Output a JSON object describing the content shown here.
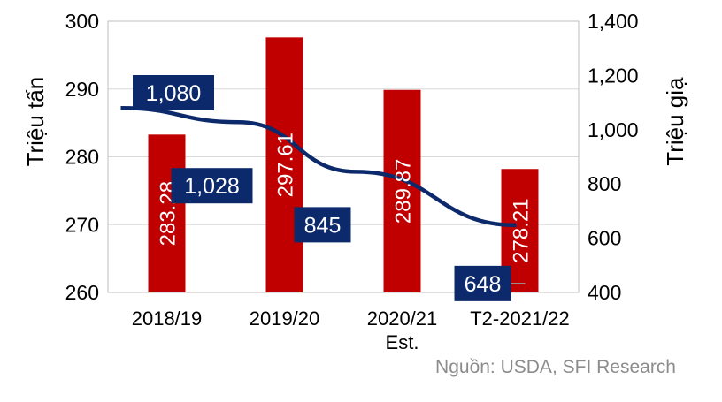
{
  "chart_data": {
    "type": "bar+line",
    "categories": [
      "2018/19",
      "2019/20",
      "2020/21\nEst.",
      "T2-2021/22"
    ],
    "left_axis": {
      "label": "Triệu tấn",
      "range": [
        260,
        300
      ],
      "ticks": [
        "260",
        "270",
        "280",
        "290",
        "300"
      ]
    },
    "right_axis": {
      "label": "Triệu giạ",
      "range": [
        400,
        1400
      ],
      "ticks": [
        "400",
        "600",
        "800",
        "1,000",
        "1,200",
        "1,400"
      ]
    },
    "series": [
      {
        "kind": "bar",
        "axis": "left",
        "color": "#c00000",
        "values": [
          283.28,
          297.61,
          289.87,
          278.21
        ],
        "labels": [
          "283.28",
          "297.61",
          "289.87",
          "278.21"
        ]
      },
      {
        "kind": "line",
        "axis": "right",
        "color": "#0c2a6b",
        "values": [
          1080,
          1028,
          845,
          648
        ],
        "labels": [
          "1,080",
          "1,028",
          "845",
          "648"
        ]
      }
    ],
    "grid": true,
    "legend": "none"
  },
  "source": "Nguồn: USDA, SFI Research"
}
